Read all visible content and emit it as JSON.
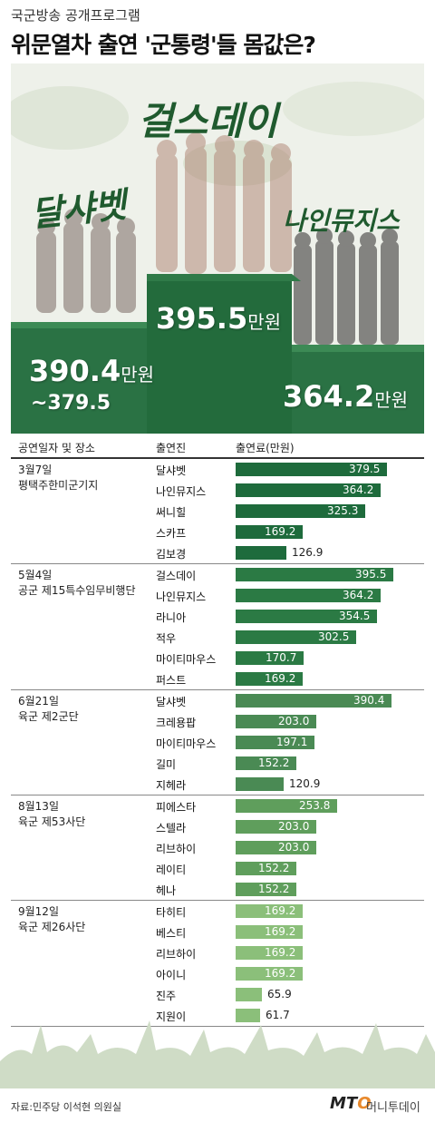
{
  "header": {
    "subtitle": "국군방송 공개프로그램",
    "title": "위문열차 출연 '군통령'들 몸값은?"
  },
  "hero": {
    "groups": [
      {
        "name": "달샤벳",
        "amount": "390.4",
        "unit": "만원",
        "amount_extra": "~379.5"
      },
      {
        "name": "걸스데이",
        "amount": "395.5",
        "unit": "만원"
      },
      {
        "name": "나인뮤지스",
        "amount": "364.2",
        "unit": "만원"
      }
    ]
  },
  "table_header": {
    "col1": "공연일자 및 장소",
    "col2": "출연진",
    "col3": "출연료(만원)"
  },
  "chart_data": {
    "type": "bar",
    "orientation": "horizontal",
    "unit": "만원",
    "xlim": [
      0,
      400
    ],
    "sections": [
      {
        "date": "3월7일",
        "place": "평택주한미군기지",
        "color": "#1e6b3c",
        "items": [
          {
            "name": "달샤벳",
            "value": 379.5
          },
          {
            "name": "나인뮤지스",
            "value": 364.2
          },
          {
            "name": "써니힐",
            "value": 325.3
          },
          {
            "name": "스카프",
            "value": 169.2
          },
          {
            "name": "김보경",
            "value": 126.9
          }
        ]
      },
      {
        "date": "5월4일",
        "place": "공군 제15특수임무비행단",
        "color": "#2b7a44",
        "items": [
          {
            "name": "걸스데이",
            "value": 395.5
          },
          {
            "name": "나인뮤지스",
            "value": 364.2
          },
          {
            "name": "라니아",
            "value": 354.5
          },
          {
            "name": "적우",
            "value": 302.5
          },
          {
            "name": "마이티마우스",
            "value": 170.7
          },
          {
            "name": "퍼스트",
            "value": 169.2
          }
        ]
      },
      {
        "date": "6월21일",
        "place": "육군 제2군단",
        "color": "#4a8a54",
        "items": [
          {
            "name": "달샤벳",
            "value": 390.4
          },
          {
            "name": "크레용팝",
            "value": 203.0
          },
          {
            "name": "마이티마우스",
            "value": 197.1
          },
          {
            "name": "길미",
            "value": 152.2
          },
          {
            "name": "지헤라",
            "value": 120.9
          }
        ]
      },
      {
        "date": "8월13일",
        "place": "육군 제53사단",
        "color": "#5f9e5c",
        "items": [
          {
            "name": "피에스타",
            "value": 253.8
          },
          {
            "name": "스텔라",
            "value": 203.0
          },
          {
            "name": "리브하이",
            "value": 203.0
          },
          {
            "name": "레이티",
            "value": 152.2
          },
          {
            "name": "헤나",
            "value": 152.2
          }
        ]
      },
      {
        "date": "9월12일",
        "place": "육군 제26사단",
        "color": "#8bbf7a",
        "items": [
          {
            "name": "타히티",
            "value": 169.2
          },
          {
            "name": "베스티",
            "value": 169.2
          },
          {
            "name": "리브하이",
            "value": 169.2
          },
          {
            "name": "아이니",
            "value": 169.2
          },
          {
            "name": "진주",
            "value": 65.9
          },
          {
            "name": "지원이",
            "value": 61.7
          }
        ]
      }
    ]
  },
  "footer": {
    "source": "자료:민주당 이석현 의원실",
    "logo": "MT",
    "logo_o": "O",
    "brand": "머니투데이"
  }
}
